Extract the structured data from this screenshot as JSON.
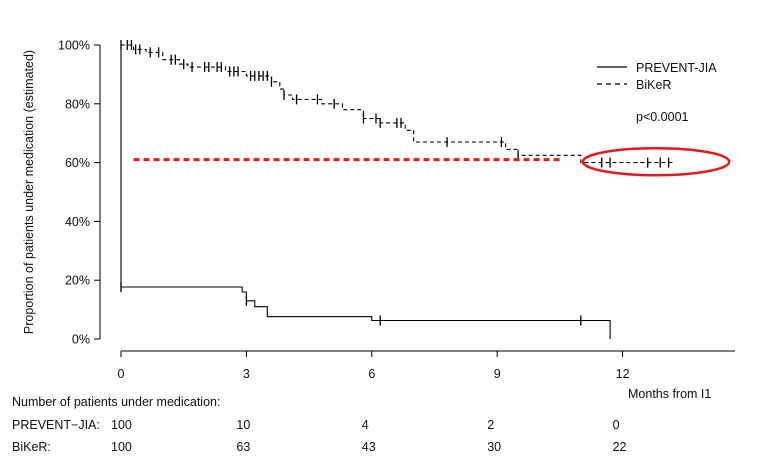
{
  "chart_data": {
    "type": "line",
    "subtype": "kaplan-meier",
    "ylabel": "Proportion of patients under medication (estimated)",
    "xlabel": "Months from I1",
    "x_ticks": [
      0,
      3,
      6,
      9,
      12
    ],
    "y_ticks": [
      0,
      20,
      40,
      60,
      80,
      100
    ],
    "y_tick_labels": [
      "0%",
      "20%",
      "40%",
      "60%",
      "80%",
      "100%"
    ],
    "xlim": [
      -0.5,
      14.7
    ],
    "ylim": [
      -3,
      102
    ],
    "legend_position": "top-right",
    "p_value": "p<0.0001",
    "series": [
      {
        "name": "PREVENT-JIA",
        "style": "solid",
        "color": "#000000",
        "steps": [
          [
            0,
            100
          ],
          [
            0,
            17.7
          ],
          [
            2.9,
            17.7
          ],
          [
            2.9,
            16
          ],
          [
            3.0,
            16
          ],
          [
            3.0,
            13
          ],
          [
            3.2,
            13
          ],
          [
            3.2,
            11
          ],
          [
            3.5,
            11
          ],
          [
            3.5,
            7.6
          ],
          [
            6.0,
            7.6
          ],
          [
            6.0,
            6.3
          ],
          [
            11.7,
            6.3
          ],
          [
            11.7,
            0
          ]
        ],
        "censor_x": [
          0,
          3.0,
          6.2,
          11.0
        ]
      },
      {
        "name": "BiKeR",
        "style": "dashed",
        "color": "#000000",
        "steps": [
          [
            0,
            100
          ],
          [
            0.3,
            100
          ],
          [
            0.3,
            98.5
          ],
          [
            0.6,
            98.5
          ],
          [
            0.6,
            97.5
          ],
          [
            1.0,
            97.5
          ],
          [
            1.0,
            95
          ],
          [
            1.4,
            95
          ],
          [
            1.4,
            93.5
          ],
          [
            1.6,
            93.5
          ],
          [
            1.6,
            92.5
          ],
          [
            2.5,
            92.5
          ],
          [
            2.5,
            91
          ],
          [
            3.0,
            91
          ],
          [
            3.0,
            89.5
          ],
          [
            3.6,
            89.5
          ],
          [
            3.6,
            87.5
          ],
          [
            3.8,
            87.5
          ],
          [
            3.8,
            85
          ],
          [
            3.9,
            85
          ],
          [
            3.9,
            83
          ],
          [
            4.1,
            83
          ],
          [
            4.1,
            81.5
          ],
          [
            4.8,
            81.5
          ],
          [
            4.8,
            80
          ],
          [
            5.3,
            80
          ],
          [
            5.3,
            78
          ],
          [
            5.8,
            78
          ],
          [
            5.8,
            75
          ],
          [
            6.2,
            75
          ],
          [
            6.2,
            73.5
          ],
          [
            6.8,
            73.5
          ],
          [
            6.8,
            71
          ],
          [
            7.0,
            71
          ],
          [
            7.0,
            67
          ],
          [
            9.2,
            67
          ],
          [
            9.2,
            64.5
          ],
          [
            9.5,
            64.5
          ],
          [
            9.5,
            62.5
          ],
          [
            11.0,
            62.5
          ],
          [
            11.0,
            60
          ],
          [
            13.2,
            60
          ]
        ],
        "censor_x": [
          0,
          0.15,
          0.25,
          0.35,
          0.45,
          0.7,
          0.9,
          1.2,
          1.3,
          1.5,
          1.7,
          2.0,
          2.1,
          2.3,
          2.4,
          2.6,
          2.7,
          2.8,
          3.1,
          3.2,
          3.3,
          3.4,
          3.5,
          3.6,
          3.9,
          4.2,
          4.7,
          5.1,
          5.8,
          6.1,
          6.2,
          6.6,
          6.7,
          7.8,
          9.1,
          9.5,
          11.5,
          11.7,
          12.6,
          12.9,
          13.1
        ]
      }
    ],
    "reference_line": {
      "y": 61,
      "x_start": 0.3,
      "x_end": 10.5,
      "color": "#e31b1b",
      "style": "dashed"
    },
    "highlight_ellipse": {
      "cx": 12.8,
      "cy": 60.3,
      "rx": 1.75,
      "ry": 4.6,
      "color": "#e31b1b"
    },
    "risk_table": {
      "title": "Number of patients under medication:",
      "rows": [
        {
          "label": "PREVENT−JIA:",
          "values": [
            "100",
            "10",
            "4",
            "2",
            "0"
          ]
        },
        {
          "label": "BiKeR:",
          "values": [
            "100",
            "63",
            "43",
            "30",
            "22"
          ]
        }
      ]
    }
  }
}
